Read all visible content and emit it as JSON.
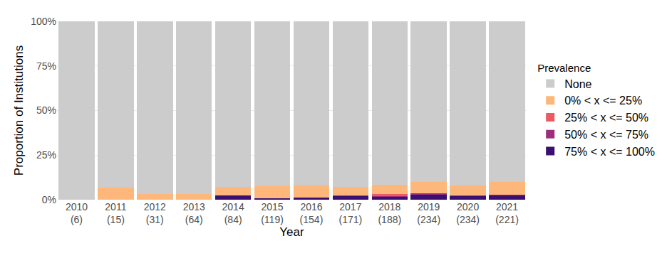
{
  "chart_data": {
    "type": "bar",
    "stacked": true,
    "grid": true,
    "legend": "right",
    "legend_title": "Prevalence",
    "x_label": "Year",
    "y_label": "Proportion of Institutions",
    "categories": [
      "2010\n(6)",
      "2011\n(15)",
      "2012\n(31)",
      "2013\n(64)",
      "2014\n(84)",
      "2015\n(119)",
      "2016\n(154)",
      "2017\n(171)",
      "2018\n(188)",
      "2019\n(234)",
      "2020\n(234)",
      "2021\n(221)"
    ],
    "series": [
      {
        "name": "None",
        "color": "#cccccc",
        "values": [
          100,
          93.3,
          96.8,
          96.9,
          92.8,
          92.5,
          92.2,
          93.0,
          91.5,
          90.2,
          91.9,
          90.1
        ]
      },
      {
        "name": "0% < x <= 25%",
        "color": "#fdb77a",
        "values": [
          0,
          6.7,
          3.2,
          3.1,
          4.8,
          6.7,
          6.5,
          4.6,
          5.3,
          6.3,
          5.6,
          7.1
        ]
      },
      {
        "name": "25% < x <= 50%",
        "color": "#ee5a62",
        "values": [
          0,
          0,
          0,
          0,
          0,
          0,
          0,
          0,
          1.1,
          0,
          0,
          0
        ]
      },
      {
        "name": "50% < x <= 75%",
        "color": "#9c2e7f",
        "values": [
          0,
          0,
          0,
          0,
          0,
          0,
          0,
          0.6,
          0.5,
          0.9,
          0.4,
          0.5
        ]
      },
      {
        "name": "75% < x <= 100%",
        "color": "#3b0f70",
        "values": [
          0,
          0,
          0,
          0,
          2.4,
          0.8,
          1.3,
          1.8,
          1.6,
          2.6,
          2.1,
          2.3
        ]
      }
    ],
    "ylim": [
      0,
      100
    ],
    "yticks": [
      {
        "value": 0,
        "label": "0%"
      },
      {
        "value": 25,
        "label": "25%"
      },
      {
        "value": 50,
        "label": "50%"
      },
      {
        "value": 75,
        "label": "75%"
      },
      {
        "value": 100,
        "label": "100%"
      }
    ]
  }
}
